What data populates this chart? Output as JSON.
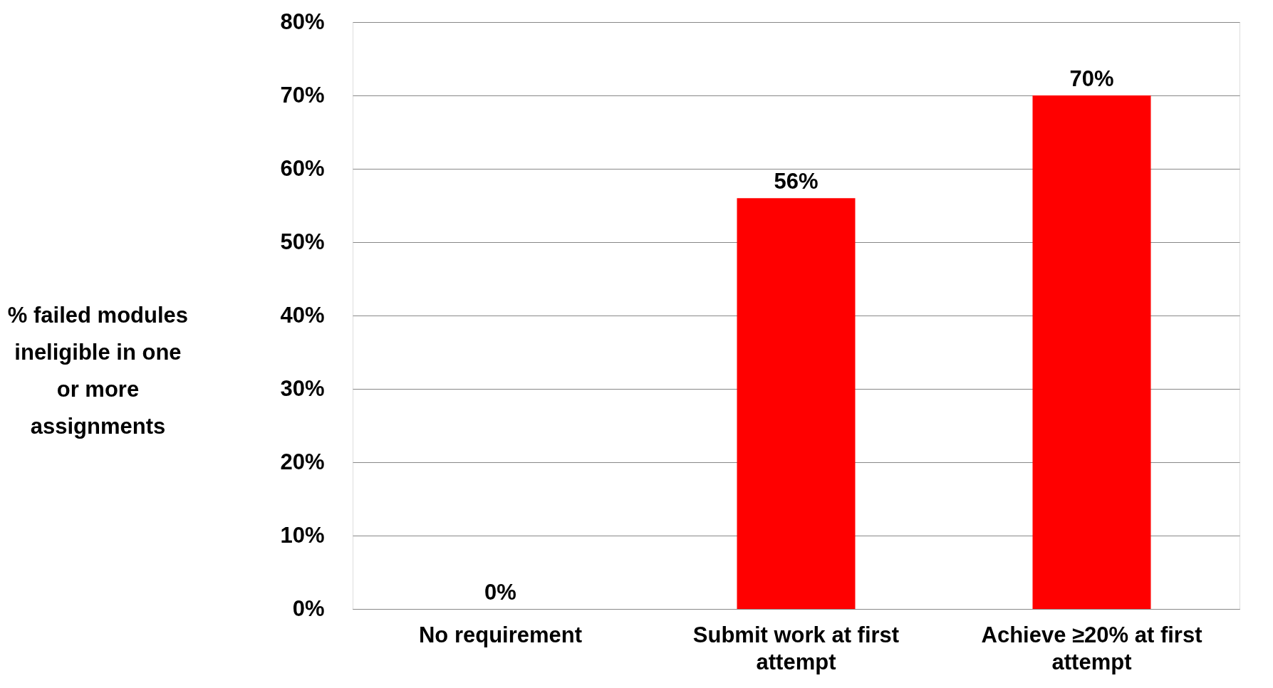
{
  "chart_data": {
    "type": "bar",
    "ylabel": "% failed modules ineligible in one or more assignments",
    "categories": [
      "No requirement",
      "Submit work at first attempt",
      "Achieve ≥20% at first attempt"
    ],
    "values": [
      0,
      56,
      70
    ],
    "color": "#ff0000",
    "value_labels": [
      "0%",
      "56%",
      "70%"
    ],
    "ylim": [
      0,
      80
    ],
    "yticks": [
      {
        "value": 0,
        "label": "0%"
      },
      {
        "value": 10,
        "label": "10%"
      },
      {
        "value": 20,
        "label": "20%"
      },
      {
        "value": 30,
        "label": "30%"
      },
      {
        "value": 40,
        "label": "40%"
      },
      {
        "value": 50,
        "label": "50%"
      },
      {
        "value": 60,
        "label": "60%"
      },
      {
        "value": 70,
        "label": "70%"
      },
      {
        "value": 80,
        "label": "80%"
      }
    ],
    "grid": "y"
  }
}
